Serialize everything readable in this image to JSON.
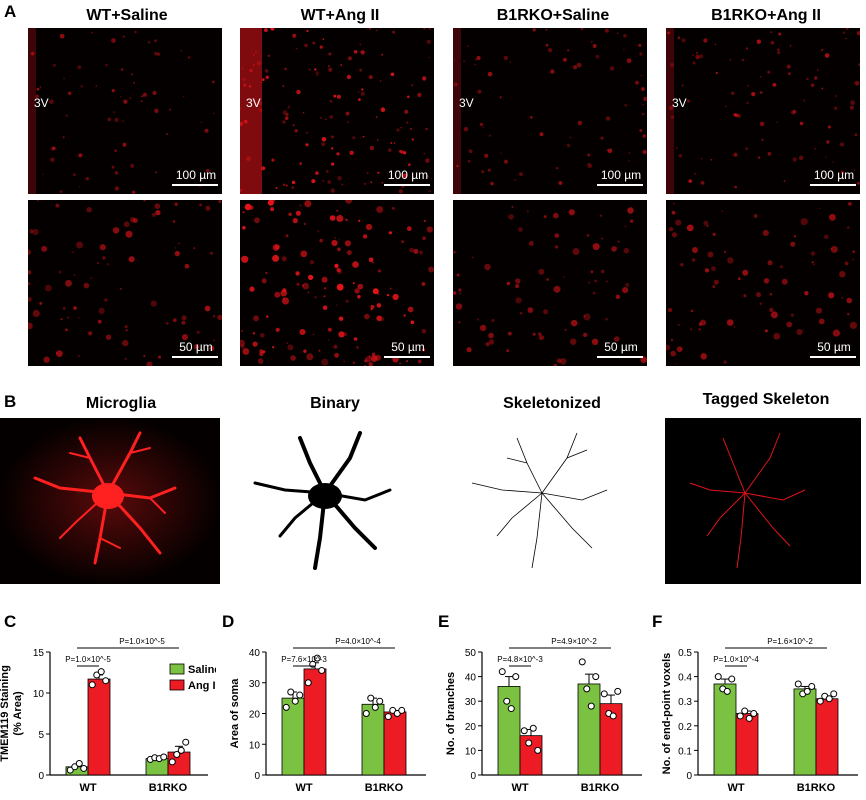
{
  "panel_labels": {
    "a": "A",
    "b": "B",
    "c": "C",
    "d": "D",
    "e": "E",
    "f": "F"
  },
  "panelA": {
    "columns": [
      "WT+Saline",
      "WT+Ang II",
      "B1RKO+Saline",
      "B1RKO+Ang II"
    ],
    "ventricle_label": "3V",
    "scale_top": "100 µm",
    "scale_bottom": "50 µm"
  },
  "panelB": {
    "titles": [
      "Microglia",
      "Binary",
      "Skeletonized",
      "Tagged Skeleton"
    ]
  },
  "colors": {
    "saline": "#7cc242",
    "angii": "#ed1c24",
    "stain": "#e0141a"
  },
  "chart_data": [
    {
      "type": "bar",
      "ylabel": "TMEM119 Staining (% Area)",
      "categories": [
        "WT",
        "B1RKO"
      ],
      "ylim": [
        0,
        15
      ],
      "yticks": [
        0,
        5,
        10,
        15
      ],
      "series": [
        {
          "name": "Saline",
          "values": [
            1.0,
            2.0
          ],
          "points": [
            [
              0.6,
              1.0,
              1.4,
              0.8
            ],
            [
              1.9,
              2.1,
              2.0,
              2.2
            ]
          ],
          "err": [
            0.3,
            0.2
          ]
        },
        {
          "name": "Ang II",
          "values": [
            11.7,
            2.8
          ],
          "points": [
            [
              11.0,
              12.2,
              12.6,
              11.5
            ],
            [
              1.6,
              2.5,
              3.0,
              4.0
            ]
          ],
          "err": [
            0.5,
            0.7
          ]
        }
      ],
      "legend": [
        "Saline",
        "Ang II"
      ],
      "annotations": [
        {
          "text": "P=1.0×10^-5",
          "pair": "within-WT"
        },
        {
          "text": "P=1.0×10^-5",
          "pair": "between"
        }
      ]
    },
    {
      "type": "bar",
      "ylabel": "Area of soma",
      "categories": [
        "WT",
        "B1RKO"
      ],
      "ylim": [
        0,
        40
      ],
      "yticks": [
        0,
        10,
        20,
        30,
        40
      ],
      "series": [
        {
          "name": "Saline",
          "values": [
            25,
            23
          ],
          "points": [
            [
              22,
              27,
              24,
              26
            ],
            [
              20,
              25,
              22,
              24
            ]
          ],
          "err": [
            2,
            2
          ]
        },
        {
          "name": "Ang II",
          "values": [
            34.5,
            20.5
          ],
          "points": [
            [
              30,
              36,
              38,
              34
            ],
            [
              19,
              21,
              20,
              21
            ]
          ],
          "err": [
            2,
            0.5
          ]
        }
      ],
      "annotations": [
        {
          "text": "P=7.6×10^-3",
          "pair": "within-WT"
        },
        {
          "text": "P=4.0×10^-4",
          "pair": "between"
        }
      ]
    },
    {
      "type": "bar",
      "ylabel": "No. of branches",
      "categories": [
        "WT",
        "B1RKO"
      ],
      "ylim": [
        0,
        50
      ],
      "yticks": [
        0,
        10,
        20,
        30,
        40,
        50
      ],
      "series": [
        {
          "name": "Saline",
          "values": [
            36,
            37
          ],
          "points": [
            [
              42,
              30,
              27,
              40
            ],
            [
              46,
              35,
              28,
              40
            ]
          ],
          "err": [
            4,
            4
          ]
        },
        {
          "name": "Ang II",
          "values": [
            16,
            29
          ],
          "points": [
            [
              18,
              13,
              19,
              10
            ],
            [
              33,
              25,
              24,
              34
            ]
          ],
          "err": [
            2.5,
            3.5
          ]
        }
      ],
      "annotations": [
        {
          "text": "P=4.8×10^-3",
          "pair": "within-WT"
        },
        {
          "text": "P=4.9×10^-2",
          "pair": "between"
        }
      ]
    },
    {
      "type": "bar",
      "ylabel": "No. of end-point voxels",
      "categories": [
        "WT",
        "B1RKO"
      ],
      "ylim": [
        0,
        0.5
      ],
      "yticks": [
        0,
        0.1,
        0.2,
        0.3,
        0.4,
        0.5
      ],
      "series": [
        {
          "name": "Saline",
          "values": [
            0.37,
            0.35
          ],
          "points": [
            [
              0.4,
              0.35,
              0.34,
              0.39
            ],
            [
              0.37,
              0.33,
              0.34,
              0.36
            ]
          ],
          "err": [
            0.02,
            0.01
          ]
        },
        {
          "name": "Ang II",
          "values": [
            0.25,
            0.31
          ],
          "points": [
            [
              0.24,
              0.26,
              0.23,
              0.25
            ],
            [
              0.3,
              0.32,
              0.31,
              0.33
            ]
          ],
          "err": [
            0.01,
            0.01
          ]
        }
      ],
      "annotations": [
        {
          "text": "P=1.0×10^-4",
          "pair": "within-WT"
        },
        {
          "text": "P=1.6×10^-2",
          "pair": "between"
        }
      ]
    }
  ]
}
